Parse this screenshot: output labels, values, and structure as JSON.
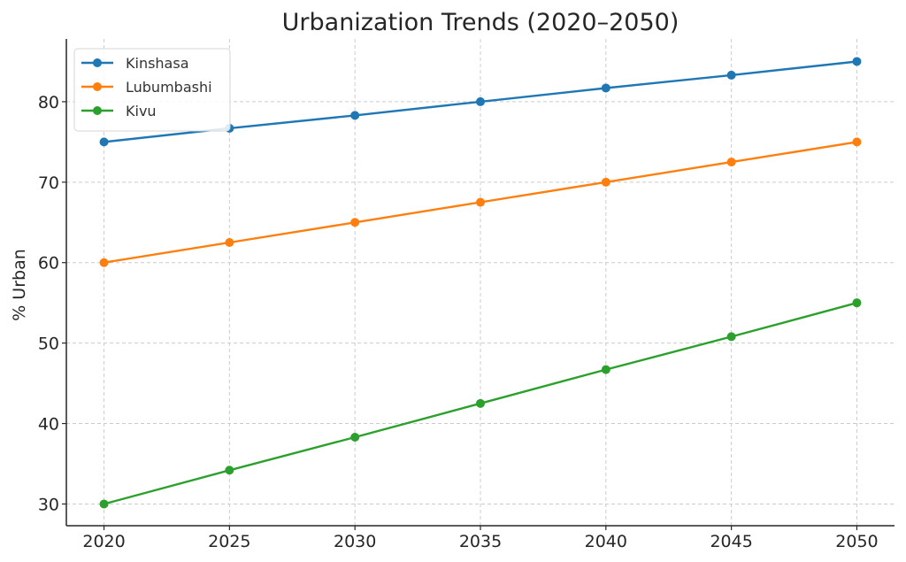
{
  "chart_data": {
    "type": "line",
    "title": "Urbanization Trends (2020–2050)",
    "xlabel": "",
    "ylabel": "% Urban",
    "x": [
      2020,
      2025,
      2030,
      2035,
      2040,
      2045,
      2050
    ],
    "xlim": [
      2018.5,
      2051.5
    ],
    "ylim": [
      27.3,
      87.8
    ],
    "yticks": [
      30,
      40,
      50,
      60,
      70,
      80
    ],
    "grid": true,
    "legend_position": "top-left",
    "series": [
      {
        "name": "Kinshasa",
        "color": "#1f77b4",
        "values": [
          75.0,
          76.7,
          78.3,
          80.0,
          81.7,
          83.3,
          85.0
        ]
      },
      {
        "name": "Lubumbashi",
        "color": "#ff7f0e",
        "values": [
          60.0,
          62.5,
          65.0,
          67.5,
          70.0,
          72.5,
          75.0
        ]
      },
      {
        "name": "Kivu",
        "color": "#2ca02c",
        "values": [
          30.0,
          34.2,
          38.3,
          42.5,
          46.7,
          50.8,
          55.0
        ]
      }
    ]
  }
}
